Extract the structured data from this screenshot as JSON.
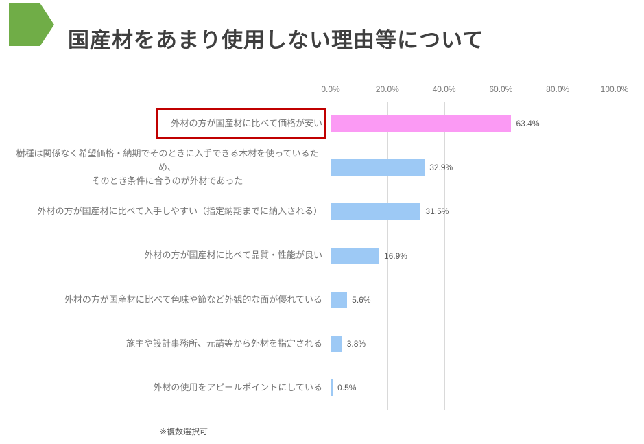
{
  "header": {
    "title": "国産材をあまり使用しない理由等について",
    "accent_color": "#70AD47"
  },
  "chart_data": {
    "type": "bar",
    "orientation": "horizontal",
    "title": "",
    "xlabel": "",
    "ylabel": "",
    "xlim": [
      0,
      100
    ],
    "grid": "vertical",
    "legend": "none",
    "x_ticks": [
      "0.0%",
      "20.0%",
      "40.0%",
      "60.0%",
      "80.0%",
      "100.0%"
    ],
    "categories": [
      "外材の方が国産材に比べて価格が安い",
      "樹種は関係なく希望価格・納期でそのときに入手できる木材を使っているため、\nそのとき条件に合うのが外材であった",
      "外材の方が国産材に比べて入手しやすい（指定納期までに納入される）",
      "外材の方が国産材に比べて品質・性能が良い",
      "外材の方が国産材に比べて色味や節など外観的な面が優れている",
      "施主や設計事務所、元請等から外材を指定される",
      "外材の使用をアピールポイントにしている"
    ],
    "values": [
      63.4,
      32.9,
      31.5,
      16.9,
      5.6,
      3.8,
      0.5
    ],
    "value_labels": [
      "63.4%",
      "32.9%",
      "31.5%",
      "16.9%",
      "5.6%",
      "3.8%",
      "0.5%"
    ],
    "bar_colors": [
      "#FB9AF4",
      "#9DC9F5",
      "#9DC9F5",
      "#9DC9F5",
      "#9DC9F5",
      "#9DC9F5",
      "#9DC9F5"
    ],
    "highlighted_category_index": 0,
    "highlight_box_color": "#C00000",
    "gridline_color": "#D9D9D9"
  },
  "footnote": "※複数選択可"
}
